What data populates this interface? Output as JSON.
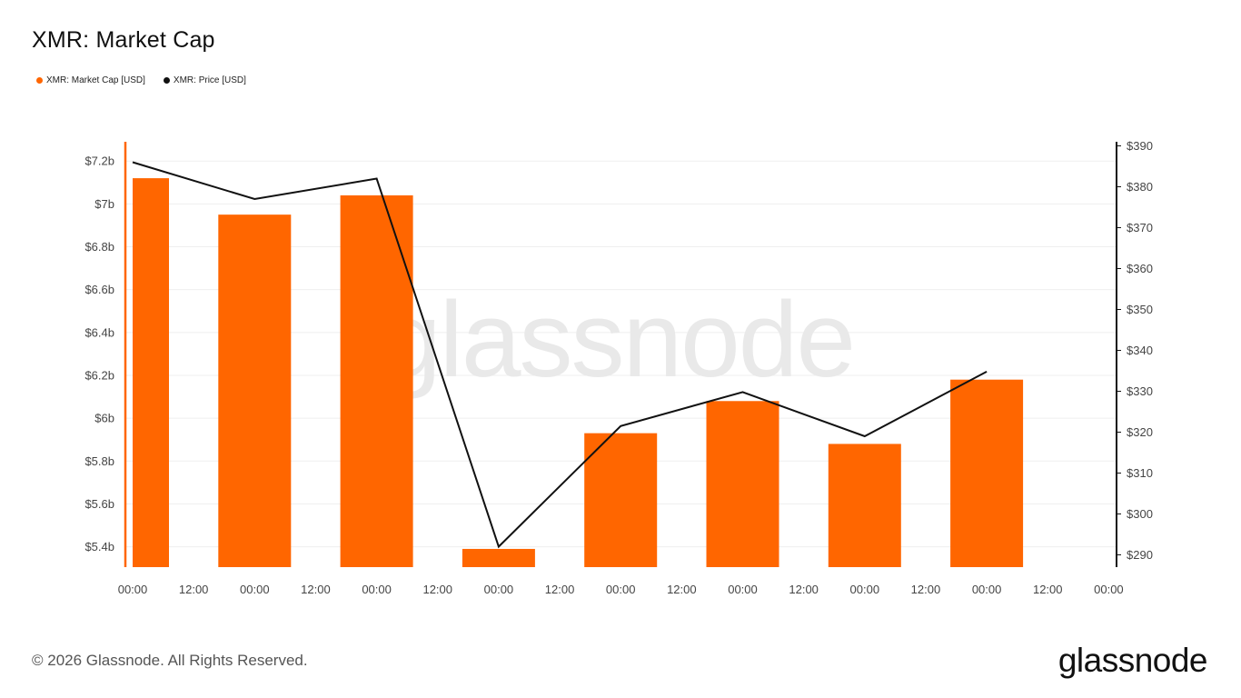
{
  "title": "XMR: Market Cap",
  "legend": [
    {
      "label": "XMR: Market Cap [USD]",
      "color": "#ff6600"
    },
    {
      "label": "XMR: Price [USD]",
      "color": "#111111"
    }
  ],
  "watermark": "glassnode",
  "footer": "© 2026 Glassnode. All Rights Reserved.",
  "brand": "glassnode",
  "chart_data": {
    "type": "bar+line",
    "x_ticks": [
      "00:00",
      "12:00",
      "00:00",
      "12:00",
      "00:00",
      "12:00",
      "00:00",
      "12:00",
      "00:00",
      "12:00",
      "00:00",
      "12:00",
      "00:00",
      "12:00",
      "00:00",
      "12:00",
      "00:00"
    ],
    "left_axis": {
      "ticks": [
        "$5.4b",
        "$5.6b",
        "$5.8b",
        "$6b",
        "$6.2b",
        "$6.4b",
        "$6.6b",
        "$6.8b",
        "$7b",
        "$7.2b"
      ],
      "tick_values": [
        5.4,
        5.6,
        5.8,
        6.0,
        6.2,
        6.4,
        6.6,
        6.8,
        7.0,
        7.2
      ],
      "range": [
        5.305,
        7.29
      ],
      "unit": "billion USD",
      "color": "#ff6600"
    },
    "right_axis": {
      "ticks": [
        "$290",
        "$300",
        "$310",
        "$320",
        "$330",
        "$340",
        "$350",
        "$360",
        "$370",
        "$380",
        "$390"
      ],
      "tick_values": [
        290,
        300,
        310,
        320,
        330,
        340,
        350,
        360,
        370,
        380,
        390
      ],
      "range": [
        287,
        391
      ],
      "unit": "USD",
      "color": "#111111"
    },
    "series": [
      {
        "name": "XMR: Market Cap [USD]",
        "type": "bar",
        "axis": "left",
        "color": "#ff6600",
        "x_index": [
          0,
          2,
          4,
          6,
          8,
          10,
          12,
          14
        ],
        "values": [
          7.12,
          6.95,
          7.04,
          5.39,
          5.93,
          6.08,
          5.88,
          6.18
        ]
      },
      {
        "name": "XMR: Price [USD]",
        "type": "line",
        "axis": "right",
        "color": "#111111",
        "x_index": [
          0,
          2,
          4,
          6,
          8,
          10,
          12,
          14
        ],
        "values": [
          386,
          377,
          382,
          292,
          321.5,
          329.8,
          319,
          334.8
        ]
      }
    ],
    "grid": true
  }
}
